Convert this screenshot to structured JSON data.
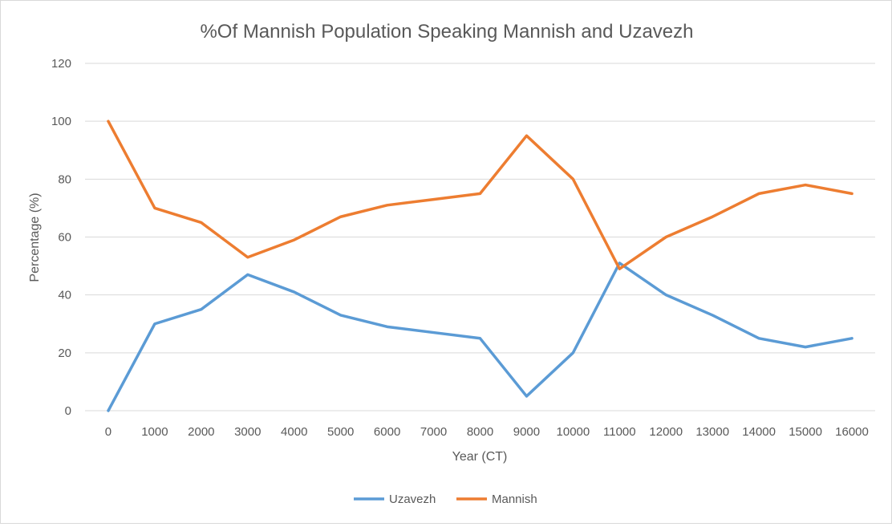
{
  "chart_data": {
    "type": "line",
    "title": "%Of Mannish Population Speaking Mannish and Uzavezh",
    "xlabel": "Year (CT)",
    "ylabel": "Percentage (%)",
    "x": [
      0,
      1000,
      2000,
      3000,
      4000,
      5000,
      6000,
      7000,
      8000,
      9000,
      10000,
      11000,
      12000,
      13000,
      14000,
      15000,
      16000
    ],
    "ylim": [
      0,
      120
    ],
    "yticks": [
      0,
      20,
      40,
      60,
      80,
      100,
      120
    ],
    "grid": true,
    "legend_position": "bottom",
    "series": [
      {
        "name": "Uzavezh",
        "color": "#5b9bd5",
        "values": [
          0,
          30,
          35,
          47,
          41,
          33,
          29,
          27,
          25,
          5,
          20,
          51,
          40,
          33,
          25,
          22,
          25
        ]
      },
      {
        "name": "Mannish",
        "color": "#ed7d31",
        "values": [
          100,
          70,
          65,
          53,
          59,
          67,
          71,
          73,
          75,
          95,
          80,
          49,
          60,
          67,
          75,
          78,
          75
        ]
      }
    ]
  }
}
